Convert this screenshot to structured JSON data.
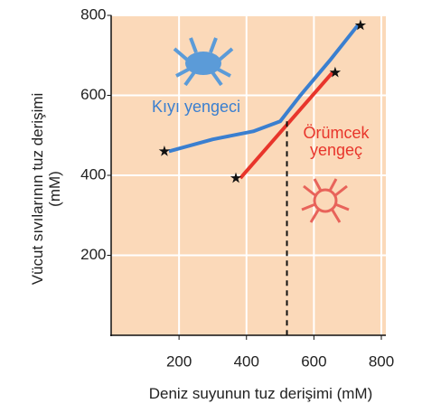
{
  "chart_data": {
    "type": "line",
    "xlabel": "Deniz suyunun tuz derişimi (mM)",
    "ylabel": "Vücut sıvılarının tuz derişimi (mM)",
    "xlim": [
      0,
      800
    ],
    "ylim": [
      0,
      800
    ],
    "xticks": [
      200,
      400,
      600,
      800
    ],
    "yticks": [
      200,
      400,
      600,
      800
    ],
    "grid": true,
    "vline": 520,
    "series": [
      {
        "name": "Kıyı yengeci",
        "color": "#3a7fd0",
        "x": [
          170,
          300,
          420,
          500,
          560,
          650,
          730
        ],
        "values": [
          460,
          490,
          510,
          535,
          600,
          690,
          775
        ]
      },
      {
        "name": "Örümcek yengeç",
        "color": "#e8352b",
        "x": [
          382,
          655
        ],
        "values": [
          393,
          657
        ]
      }
    ]
  }
}
